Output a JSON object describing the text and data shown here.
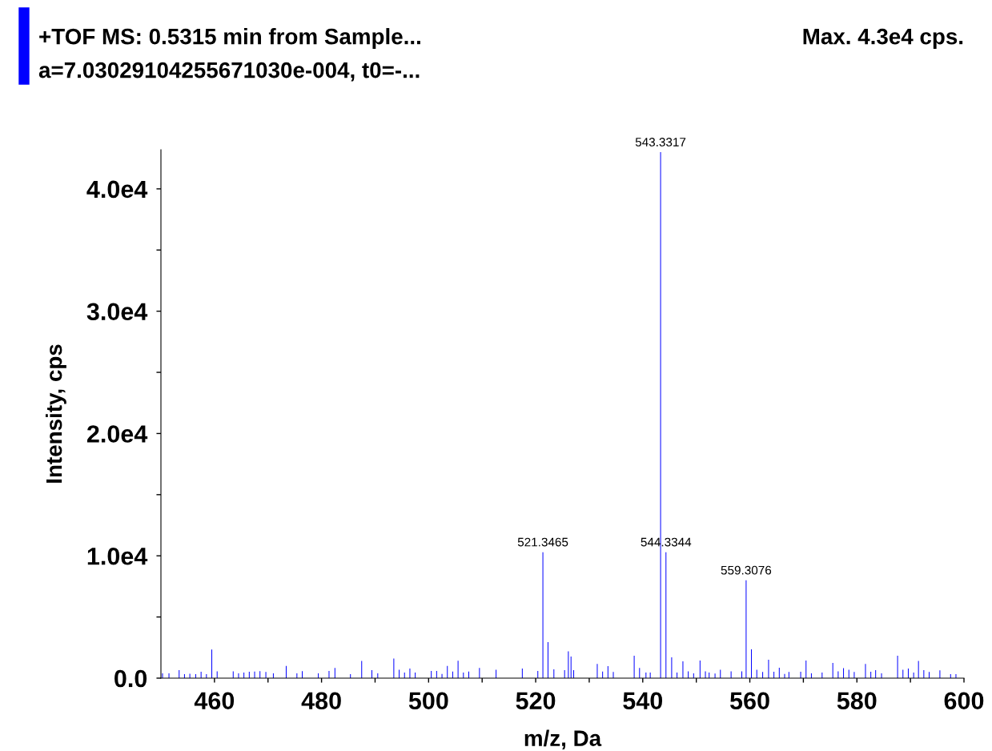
{
  "chart_data": {
    "type": "bar",
    "title": "+TOF MS: 0.5315 min from Sample...",
    "subtitle": "a=7.03029104255671030e-004, t0=-...",
    "xlabel": "m/z, Da",
    "ylabel": "Intensity, cps",
    "color": "#0000ff",
    "annotations": [
      "Max. 4.3e4 cps.",
      {
        "text": "521.3465",
        "x": 521.3465,
        "y": 10300
      },
      {
        "text": "543.3317",
        "x": 543.3317,
        "y": 43000
      },
      {
        "text": "544.3344",
        "x": 544.3344,
        "y": 10300
      },
      {
        "text": "559.3076",
        "x": 559.3076,
        "y": 8000
      }
    ],
    "x": [
      450.3,
      451.5,
      453.4,
      454.4,
      455.4,
      456.5,
      457.5,
      458.5,
      459.5,
      460.5,
      463.5,
      464.5,
      465.5,
      466.5,
      467.5,
      468.5,
      469.6,
      471.0,
      473.4,
      475.4,
      476.4,
      479.4,
      481.4,
      482.5,
      485.4,
      487.5,
      489.4,
      490.5,
      493.5,
      494.5,
      495.5,
      496.5,
      497.5,
      500.5,
      501.5,
      502.5,
      503.5,
      504.5,
      505.5,
      506.5,
      507.5,
      509.5,
      512.6,
      517.5,
      520.4,
      521.3465,
      522.3,
      523.4,
      525.4,
      526.1,
      526.6,
      527.1,
      531.5,
      532.5,
      533.5,
      534.5,
      538.4,
      539.4,
      540.6,
      541.4,
      543.3317,
      544.3344,
      545.4,
      546.4,
      547.5,
      548.5,
      549.5,
      550.7,
      551.7,
      552.4,
      553.5,
      554.5,
      556.5,
      558.5,
      559.3076,
      560.3,
      561.3,
      562.4,
      563.5,
      564.5,
      565.5,
      566.5,
      567.3,
      569.5,
      570.5,
      571.5,
      573.5,
      575.5,
      576.5,
      577.5,
      578.5,
      579.5,
      581.6,
      582.6,
      583.5,
      584.6,
      587.6,
      588.6,
      589.6,
      590.6,
      591.5,
      592.5,
      593.5,
      595.5,
      597.5,
      598.5
    ],
    "values": [
      390,
      390,
      650,
      330,
      360,
      330,
      520,
      330,
      2340,
      560,
      560,
      400,
      460,
      520,
      540,
      570,
      500,
      400,
      1000,
      400,
      570,
      400,
      590,
      830,
      330,
      1400,
      650,
      400,
      1600,
      690,
      460,
      790,
      460,
      590,
      590,
      350,
      1000,
      540,
      1420,
      460,
      540,
      830,
      690,
      790,
      590,
      10300,
      2950,
      720,
      650,
      2200,
      1760,
      650,
      1160,
      540,
      980,
      500,
      1830,
      830,
      460,
      460,
      43000,
      10300,
      1700,
      460,
      1370,
      560,
      400,
      1440,
      560,
      460,
      380,
      690,
      560,
      560,
      8000,
      2360,
      680,
      500,
      1510,
      520,
      850,
      350,
      500,
      520,
      1440,
      400,
      460,
      1250,
      560,
      810,
      690,
      500,
      1160,
      520,
      650,
      400,
      1830,
      690,
      790,
      460,
      1400,
      650,
      500,
      630,
      330,
      330
    ],
    "xlim": [
      450,
      600
    ],
    "xticks": [
      460,
      {
        "value": 470,
        "label": null
      },
      480,
      {
        "value": 490,
        "label": null
      },
      500,
      {
        "value": 510,
        "label": null
      },
      520,
      {
        "value": 530,
        "label": null
      },
      540,
      {
        "value": 550,
        "label": null
      },
      560,
      {
        "value": 570,
        "label": null
      },
      580,
      {
        "value": 590,
        "label": null
      },
      600
    ],
    "ylim": [
      0,
      43200
    ],
    "yticks": [
      {
        "value": 0,
        "label": "0.0"
      },
      {
        "value": 5000,
        "label": null
      },
      {
        "value": 10000,
        "label": "1.0e4"
      },
      {
        "value": 15000,
        "label": null
      },
      {
        "value": 20000,
        "label": "2.0e4"
      },
      {
        "value": 25000,
        "label": null
      },
      {
        "value": 30000,
        "label": "3.0e4"
      },
      {
        "value": 35000,
        "label": null
      },
      {
        "value": 40000,
        "label": "4.0e4"
      }
    ],
    "grid": false,
    "legend": false
  }
}
